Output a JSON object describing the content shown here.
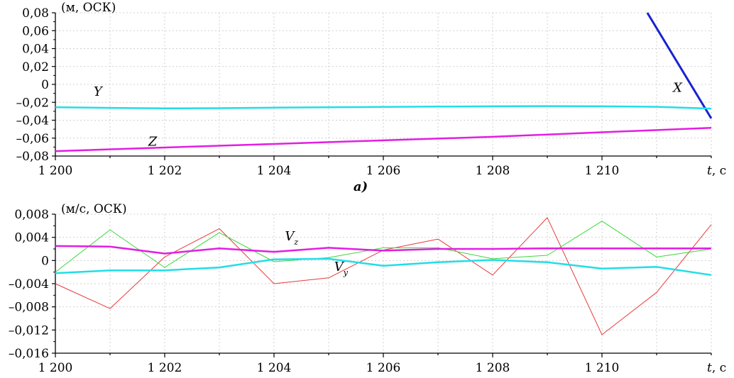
{
  "caption": "а)",
  "chart_data": [
    {
      "type": "line",
      "unit_label": "(м, ОСК)",
      "x_label": "t",
      "x_unit": ", с",
      "xlim": [
        1200,
        1212
      ],
      "ylim": [
        -0.08,
        0.08
      ],
      "x_ticks": [
        "1 200",
        "1 202",
        "1 204",
        "1 206",
        "1 208",
        "1 210"
      ],
      "x_tick_values": [
        1200,
        1202,
        1204,
        1206,
        1208,
        1210
      ],
      "y_ticks": [
        "0,08",
        "0,06",
        "0,04",
        "0,02",
        "0",
        "–0,02",
        "–0,04",
        "–0,06",
        "–0,08"
      ],
      "y_tick_values": [
        0.08,
        0.06,
        0.04,
        0.02,
        0,
        -0.02,
        -0.04,
        -0.06,
        -0.08
      ],
      "grid": true,
      "series": [
        {
          "name": "X",
          "color": "#1a22d0",
          "width": 3,
          "x": [
            1210.83,
            1212.0
          ],
          "y": [
            0.08,
            -0.038
          ],
          "label_at": [
            1211.3,
            -0.0085
          ]
        },
        {
          "name": "Y",
          "color": "#22dde8",
          "width": 2.5,
          "x": [
            1200,
            1201,
            1202,
            1203,
            1204,
            1205,
            1206,
            1207,
            1208,
            1209,
            1210,
            1211,
            1212
          ],
          "y": [
            -0.0255,
            -0.0262,
            -0.0268,
            -0.0265,
            -0.026,
            -0.0255,
            -0.0252,
            -0.0248,
            -0.0245,
            -0.0242,
            -0.0245,
            -0.025,
            -0.027
          ],
          "label_at": [
            1200.7,
            -0.0125
          ]
        },
        {
          "name": "Z",
          "color": "#e21ee2",
          "width": 2.5,
          "x": [
            1200,
            1202,
            1204,
            1206,
            1208,
            1210,
            1212
          ],
          "y": [
            -0.0745,
            -0.0705,
            -0.0665,
            -0.0625,
            -0.0585,
            -0.0535,
            -0.0485
          ],
          "label_at": [
            1201.7,
            -0.0685
          ]
        }
      ]
    },
    {
      "type": "line",
      "unit_label": "(м/с, ОСК)",
      "x_label": "t",
      "x_unit": ", с",
      "xlim": [
        1200,
        1212
      ],
      "ylim": [
        -0.016,
        0.008
      ],
      "x_ticks": [
        "1 200",
        "1 202",
        "1 204",
        "1 206",
        "1 208",
        "1 210"
      ],
      "x_tick_values": [
        1200,
        1202,
        1204,
        1206,
        1208,
        1210
      ],
      "y_ticks": [
        "0,008",
        "0,004",
        "0",
        "–0,004",
        "–0,008",
        "–0,012",
        "–0,016"
      ],
      "y_tick_values": [
        0.008,
        0.004,
        0,
        -0.004,
        -0.008,
        -0.012,
        -0.016
      ],
      "grid": true,
      "series": [
        {
          "name": "",
          "color": "#e83a3a",
          "width": 1,
          "x": [
            1200,
            1201,
            1202,
            1203,
            1204,
            1205,
            1206,
            1207,
            1208,
            1209,
            1210,
            1211,
            1212
          ],
          "y": [
            -0.004,
            -0.0083,
            0.0006,
            0.0055,
            -0.004,
            -0.003,
            0.0018,
            0.0037,
            -0.0025,
            0.0074,
            -0.0128,
            -0.0055,
            0.0062
          ]
        },
        {
          "name": "",
          "color": "#3ad83a",
          "width": 1,
          "x": [
            1200,
            1201,
            1202,
            1203,
            1204,
            1205,
            1206,
            1207,
            1208,
            1209,
            1210,
            1211,
            1212
          ],
          "y": [
            -0.002,
            0.0053,
            -0.0012,
            0.0048,
            -0.0002,
            0.0005,
            0.0022,
            0.0022,
            0.0003,
            0.0009,
            0.0068,
            0.0006,
            0.002
          ]
        },
        {
          "name": "Vz",
          "color": "#e21ee2",
          "width": 2.5,
          "x": [
            1200,
            1201,
            1202,
            1203,
            1204,
            1205,
            1206,
            1207,
            1208,
            1209,
            1210,
            1211,
            1212
          ],
          "y": [
            0.0025,
            0.0024,
            0.0012,
            0.0021,
            0.0015,
            0.0022,
            0.0017,
            0.002,
            0.002,
            0.0021,
            0.0021,
            0.0021,
            0.0021
          ],
          "label_at": [
            1204.2,
            0.0035
          ]
        },
        {
          "name": "Vy",
          "color": "#22dde8",
          "width": 2.5,
          "x": [
            1200,
            1201,
            1202,
            1203,
            1204,
            1205,
            1206,
            1207,
            1208,
            1209,
            1210,
            1211,
            1212
          ],
          "y": [
            -0.0022,
            -0.0017,
            -0.0017,
            -0.0012,
            0.0002,
            0.0003,
            -0.0009,
            -0.0003,
            0.0001,
            -0.0003,
            -0.0014,
            -0.0011,
            -0.0025
          ],
          "label_at": [
            1205.1,
            -0.0018
          ]
        }
      ]
    }
  ]
}
